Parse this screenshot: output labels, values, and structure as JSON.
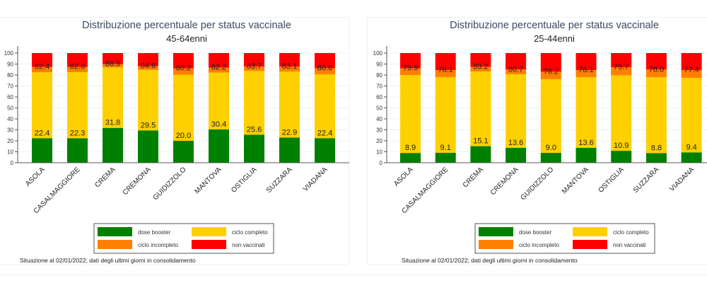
{
  "chart_data": [
    {
      "type": "bar",
      "stacked": true,
      "title": "Distribuzione percentuale per status vaccinale",
      "subtitle": "45-64enni",
      "xlabel": "",
      "ylabel": "",
      "ylim": [
        0,
        100
      ],
      "yticks": [
        0,
        10,
        20,
        30,
        40,
        50,
        60,
        70,
        80,
        90,
        100
      ],
      "grid": true,
      "categories": [
        "ASOLA",
        "CASALMAGGIORE",
        "CREMA",
        "CREMONA",
        "GUIDIZZOLO",
        "MANTOVA",
        "OSTIGLIA",
        "SUZZARA",
        "VIADANA"
      ],
      "series": [
        {
          "name": "dose booster",
          "color": "#008000",
          "values": [
            22.4,
            22.3,
            31.8,
            29.5,
            20.0,
            30.4,
            25.6,
            22.9,
            22.4
          ]
        },
        {
          "name": "ciclo completo",
          "color": "#ffd000",
          "values": [
            60.0,
            60.3,
            55.1,
            55.1,
            60.2,
            51.8,
            58.1,
            60.2,
            58.2
          ]
        },
        {
          "name": "ciclo incompleto",
          "color": "#ff8000",
          "values": [
            5.0,
            4.8,
            3.0,
            3.4,
            5.8,
            4.5,
            4.0,
            4.6,
            5.6
          ]
        },
        {
          "name": "non vaccinati",
          "color": "#ff0000",
          "values": [
            12.6,
            12.6,
            10.1,
            12.0,
            14.0,
            13.3,
            12.3,
            12.3,
            13.8
          ]
        }
      ],
      "data_labels": {
        "booster": [
          "22.4",
          "22.3",
          "31.8",
          "29.5",
          "20.0",
          "30.4",
          "25.6",
          "22.9",
          "22.4"
        ],
        "cumulative_completo": [
          "82.4",
          "82.6",
          "86.9",
          "84.6",
          "80.2",
          "82.2",
          "83.7",
          "83.1",
          "80.6"
        ]
      },
      "legend": {
        "position": "bottom",
        "entries": [
          "dose booster",
          "ciclo completo",
          "ciclo incompleto",
          "non vaccinati"
        ]
      },
      "note": "Situazione al 02/01/2022; dati degli ultimi giorni in consolidamento"
    },
    {
      "type": "bar",
      "stacked": true,
      "title": "Distribuzione percentuale per status vaccinale",
      "subtitle": "25-44enni",
      "xlabel": "",
      "ylabel": "",
      "ylim": [
        0,
        100
      ],
      "yticks": [
        0,
        10,
        20,
        30,
        40,
        50,
        60,
        70,
        80,
        90,
        100
      ],
      "grid": true,
      "categories": [
        "ASOLA",
        "CASALMAGGIORE",
        "CREMA",
        "CREMONA",
        "GUIDIZZOLO",
        "MANTOVA",
        "OSTIGLIA",
        "SUZZARA",
        "VIADANA"
      ],
      "series": [
        {
          "name": "dose booster",
          "color": "#008000",
          "values": [
            8.9,
            9.1,
            15.1,
            13.6,
            9.0,
            13.6,
            10.9,
            8.8,
            9.4
          ]
        },
        {
          "name": "ciclo completo",
          "color": "#ffd000",
          "values": [
            71.0,
            69.0,
            68.1,
            67.1,
            67.2,
            64.5,
            68.8,
            69.2,
            68.0
          ]
        },
        {
          "name": "ciclo incompleto",
          "color": "#ff8000",
          "values": [
            6.1,
            6.4,
            4.3,
            4.3,
            6.8,
            6.4,
            7.3,
            7.0,
            7.1
          ]
        },
        {
          "name": "non vaccinati",
          "color": "#ff0000",
          "values": [
            14.0,
            15.5,
            12.5,
            15.0,
            17.0,
            15.5,
            13.0,
            15.0,
            15.5
          ]
        }
      ],
      "data_labels": {
        "booster": [
          "8.9",
          "9.1",
          "15.1",
          "13.6",
          "9.0",
          "13.6",
          "10.9",
          "8.8",
          "9.4"
        ],
        "cumulative_completo": [
          "79.9",
          "78.1",
          "83.2",
          "80.7",
          "76.2",
          "78.1",
          "79.7",
          "78.0",
          "77.4"
        ]
      },
      "legend": {
        "position": "bottom",
        "entries": [
          "dose booster",
          "ciclo completo",
          "ciclo incompleto",
          "non vaccinati"
        ]
      },
      "note": "Situazione al 02/01/2022; dati degli ultimi giorni in consolidamento"
    }
  ]
}
